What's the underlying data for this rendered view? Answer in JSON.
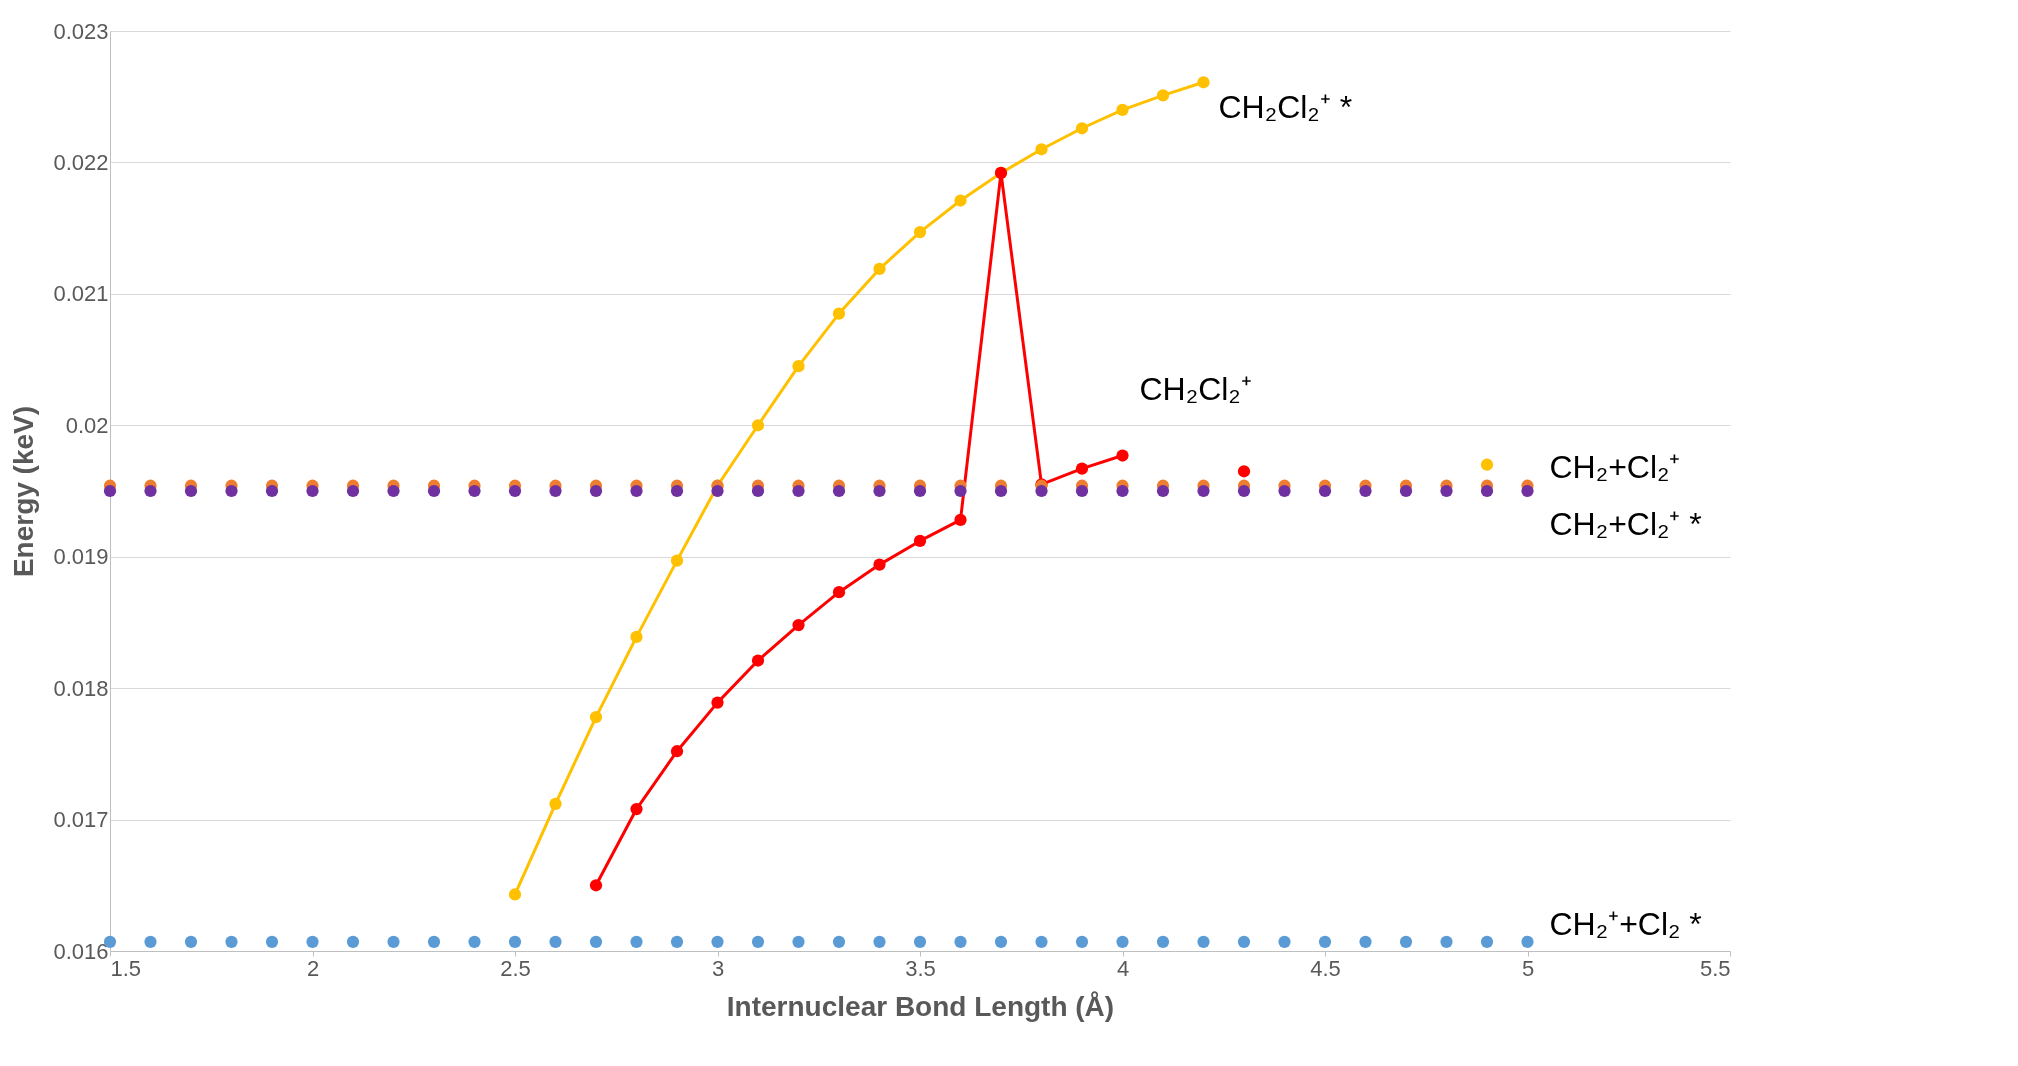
{
  "chart_data": {
    "type": "line",
    "xlabel": "Internuclear Bond Length (Å)",
    "ylabel": "Energy (keV)",
    "x": [
      1.5,
      1.6,
      1.7,
      1.8,
      1.9,
      2.0,
      2.1,
      2.2,
      2.3,
      2.4,
      2.5,
      2.6,
      2.7,
      2.8,
      2.9,
      3.0,
      3.1,
      3.2,
      3.3,
      3.4,
      3.5,
      3.6,
      3.7,
      3.8,
      3.9,
      4.0,
      4.1,
      4.2,
      4.3,
      4.4,
      4.5,
      4.6,
      4.7,
      4.8,
      4.9,
      5.0
    ],
    "series": [
      {
        "name": "CH₂Cl₂⁺ *",
        "marker": "circle",
        "color": "#ffc000",
        "values": [
          null,
          null,
          null,
          null,
          null,
          null,
          null,
          null,
          null,
          null,
          0.01643,
          0.01712,
          0.01778,
          0.01839,
          0.01897,
          0.01954,
          0.02,
          0.02045,
          0.02085,
          0.02119,
          0.02147,
          0.02171,
          0.02192,
          0.0221,
          0.02226,
          0.0224,
          0.02251,
          0.02261,
          null,
          null,
          null,
          null,
          null,
          null,
          0.0197,
          null
        ]
      },
      {
        "name": "CH₂Cl₂⁺",
        "marker": "circle",
        "color": "#ff0000",
        "values": [
          null,
          null,
          null,
          null,
          null,
          null,
          null,
          null,
          null,
          null,
          null,
          null,
          0.0165,
          0.01708,
          0.01752,
          0.01789,
          0.01821,
          0.01848,
          0.01873,
          0.01894,
          0.01912,
          0.01928,
          0.02192,
          0.01955,
          0.01967,
          0.01977,
          null,
          null,
          0.01965,
          null,
          null,
          null,
          null,
          null,
          null,
          null
        ]
      },
      {
        "name": "CH₂+Cl₂⁺",
        "type": "scatter",
        "marker": "circle",
        "color": "#ed7d31",
        "values": [
          0.01954,
          0.01954,
          0.01954,
          0.01954,
          0.01954,
          0.01954,
          0.01954,
          0.01954,
          0.01954,
          0.01954,
          0.01954,
          0.01954,
          0.01954,
          0.01954,
          0.01954,
          0.01954,
          0.01954,
          0.01954,
          0.01954,
          0.01954,
          0.01954,
          0.01954,
          0.01954,
          0.01954,
          0.01954,
          0.01954,
          0.01954,
          0.01954,
          0.01954,
          0.01954,
          0.01954,
          0.01954,
          0.01954,
          0.01954,
          0.01954,
          0.01954
        ]
      },
      {
        "name": "CH₂+Cl₂⁺ *",
        "type": "scatter",
        "marker": "circle",
        "color": "#7030a0",
        "values": [
          0.0195,
          0.0195,
          0.0195,
          0.0195,
          0.0195,
          0.0195,
          0.0195,
          0.0195,
          0.0195,
          0.0195,
          0.0195,
          0.0195,
          0.0195,
          0.0195,
          0.0195,
          0.0195,
          0.0195,
          0.0195,
          0.0195,
          0.0195,
          0.0195,
          0.0195,
          0.0195,
          0.0195,
          0.0195,
          0.0195,
          0.0195,
          0.0195,
          0.0195,
          0.0195,
          0.0195,
          0.0195,
          0.0195,
          0.0195,
          0.0195,
          0.0195
        ]
      },
      {
        "name": "CH₂⁺+Cl₂ *",
        "type": "scatter",
        "marker": "circle",
        "color": "#5b9bd5",
        "values": [
          0.01607,
          0.01607,
          0.01607,
          0.01607,
          0.01607,
          0.01607,
          0.01607,
          0.01607,
          0.01607,
          0.01607,
          0.01607,
          0.01607,
          0.01607,
          0.01607,
          0.01607,
          0.01607,
          0.01607,
          0.01607,
          0.01607,
          0.01607,
          0.01607,
          0.01607,
          0.01607,
          0.01607,
          0.01607,
          0.01607,
          0.01607,
          0.01607,
          0.01607,
          0.01607,
          0.01607,
          0.01607,
          0.01607,
          0.01607,
          0.01607,
          0.01607
        ]
      }
    ],
    "xlim": [
      1.5,
      5.5
    ],
    "xticks": [
      1.5,
      2,
      2.5,
      3,
      3.5,
      4,
      4.5,
      5,
      5.5
    ],
    "ylim": [
      0.016,
      0.023
    ],
    "yticks": [
      0.016,
      0.017,
      0.018,
      0.019,
      0.02,
      0.021,
      0.022,
      0.023
    ],
    "grid": "y",
    "legend": false,
    "line_style": "solid"
  }
}
